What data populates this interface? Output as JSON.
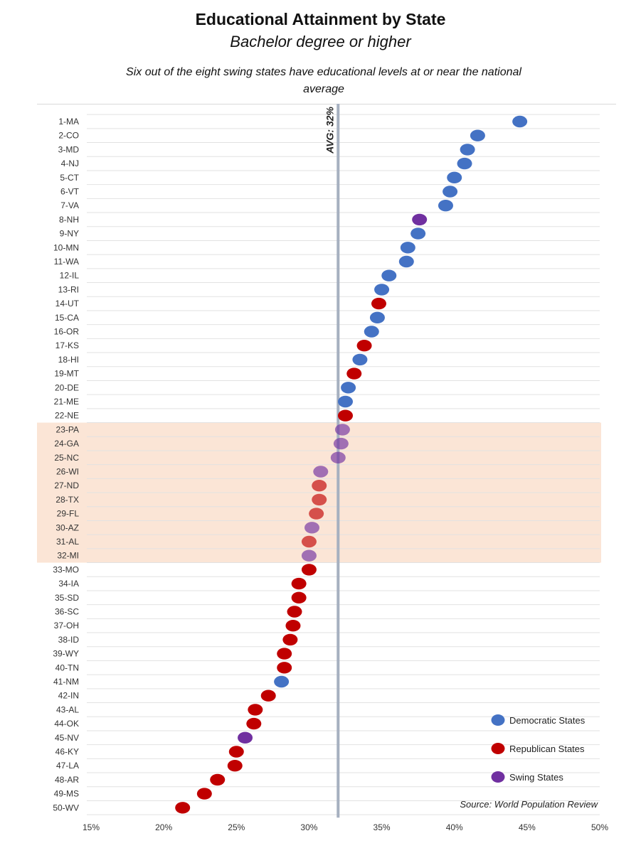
{
  "title": "Educational Attainment by State",
  "subtitle": "Bachelor degree or higher",
  "note": "Six out of the eight swing states have educational levels at or near the national average",
  "source": "Source: World Population Review",
  "avg_label": "AVG: 32%",
  "colors": {
    "democratic": "#4472C4",
    "republican": "#C00000",
    "swing": "#7030A0",
    "highlight": "#FBE5D6",
    "avg_line": "#A6B0C0"
  },
  "legend": [
    {
      "party": "D",
      "label": "Democratic States"
    },
    {
      "party": "R",
      "label": "Republican States"
    },
    {
      "party": "S",
      "label": "Swing States"
    }
  ],
  "chart_data": {
    "type": "scatter",
    "title": "Educational Attainment by State",
    "subtitle": "Bachelor degree or higher",
    "xlabel": "",
    "ylabel": "",
    "xlim": [
      15,
      50
    ],
    "x_ticks": [
      "15%",
      "20%",
      "25%",
      "30%",
      "35%",
      "40%",
      "45%",
      "50%"
    ],
    "x_tick_values": [
      15,
      20,
      25,
      30,
      35,
      40,
      45,
      50
    ],
    "average": 32,
    "highlight_range": [
      "23-PA",
      "32-MI"
    ],
    "legend_position": "bottom-right",
    "grid": "horizontal",
    "series": [
      {
        "name": "Democratic States",
        "color": "#4472C4"
      },
      {
        "name": "Republican States",
        "color": "#C00000"
      },
      {
        "name": "Swing States",
        "color": "#7030A0"
      }
    ],
    "points": [
      {
        "label": "1-MA",
        "value": 44.5,
        "party": "D"
      },
      {
        "label": "2-CO",
        "value": 41.6,
        "party": "D"
      },
      {
        "label": "3-MD",
        "value": 40.9,
        "party": "D"
      },
      {
        "label": "4-NJ",
        "value": 40.7,
        "party": "D"
      },
      {
        "label": "5-CT",
        "value": 40.0,
        "party": "D"
      },
      {
        "label": "6-VT",
        "value": 39.7,
        "party": "D"
      },
      {
        "label": "7-VA",
        "value": 39.4,
        "party": "D"
      },
      {
        "label": "8-NH",
        "value": 37.6,
        "party": "S"
      },
      {
        "label": "9-NY",
        "value": 37.5,
        "party": "D"
      },
      {
        "label": "10-MN",
        "value": 36.8,
        "party": "D"
      },
      {
        "label": "11-WA",
        "value": 36.7,
        "party": "D"
      },
      {
        "label": "12-IL",
        "value": 35.5,
        "party": "D"
      },
      {
        "label": "13-RI",
        "value": 35.0,
        "party": "D"
      },
      {
        "label": "14-UT",
        "value": 34.8,
        "party": "R"
      },
      {
        "label": "15-CA",
        "value": 34.7,
        "party": "D"
      },
      {
        "label": "16-OR",
        "value": 34.3,
        "party": "D"
      },
      {
        "label": "17-KS",
        "value": 33.8,
        "party": "R"
      },
      {
        "label": "18-HI",
        "value": 33.5,
        "party": "D"
      },
      {
        "label": "19-MT",
        "value": 33.1,
        "party": "R"
      },
      {
        "label": "20-DE",
        "value": 32.7,
        "party": "D"
      },
      {
        "label": "21-ME",
        "value": 32.5,
        "party": "D"
      },
      {
        "label": "22-NE",
        "value": 32.5,
        "party": "R"
      },
      {
        "label": "23-PA",
        "value": 32.3,
        "party": "S"
      },
      {
        "label": "24-GA",
        "value": 32.2,
        "party": "S"
      },
      {
        "label": "25-NC",
        "value": 32.0,
        "party": "S"
      },
      {
        "label": "26-WI",
        "value": 30.8,
        "party": "S"
      },
      {
        "label": "27-ND",
        "value": 30.7,
        "party": "R"
      },
      {
        "label": "28-TX",
        "value": 30.7,
        "party": "R"
      },
      {
        "label": "29-FL",
        "value": 30.5,
        "party": "R"
      },
      {
        "label": "30-AZ",
        "value": 30.2,
        "party": "S"
      },
      {
        "label": "31-AL",
        "value": 30.0,
        "party": "R"
      },
      {
        "label": "32-MI",
        "value": 30.0,
        "party": "S"
      },
      {
        "label": "33-MO",
        "value": 30.0,
        "party": "R"
      },
      {
        "label": "34-IA",
        "value": 29.3,
        "party": "R"
      },
      {
        "label": "35-SD",
        "value": 29.3,
        "party": "R"
      },
      {
        "label": "36-SC",
        "value": 29.0,
        "party": "R"
      },
      {
        "label": "37-OH",
        "value": 28.9,
        "party": "R"
      },
      {
        "label": "38-ID",
        "value": 28.7,
        "party": "R"
      },
      {
        "label": "39-WY",
        "value": 28.3,
        "party": "R"
      },
      {
        "label": "40-TN",
        "value": 28.3,
        "party": "R"
      },
      {
        "label": "41-NM",
        "value": 28.1,
        "party": "D"
      },
      {
        "label": "42-IN",
        "value": 27.2,
        "party": "R"
      },
      {
        "label": "43-AL",
        "value": 26.3,
        "party": "R"
      },
      {
        "label": "44-OK",
        "value": 26.2,
        "party": "R"
      },
      {
        "label": "45-NV",
        "value": 25.6,
        "party": "S"
      },
      {
        "label": "46-KY",
        "value": 25.0,
        "party": "R"
      },
      {
        "label": "47-LA",
        "value": 24.9,
        "party": "R"
      },
      {
        "label": "48-AR",
        "value": 23.7,
        "party": "R"
      },
      {
        "label": "49-MS",
        "value": 22.8,
        "party": "R"
      },
      {
        "label": "50-WV",
        "value": 21.3,
        "party": "R"
      }
    ]
  }
}
